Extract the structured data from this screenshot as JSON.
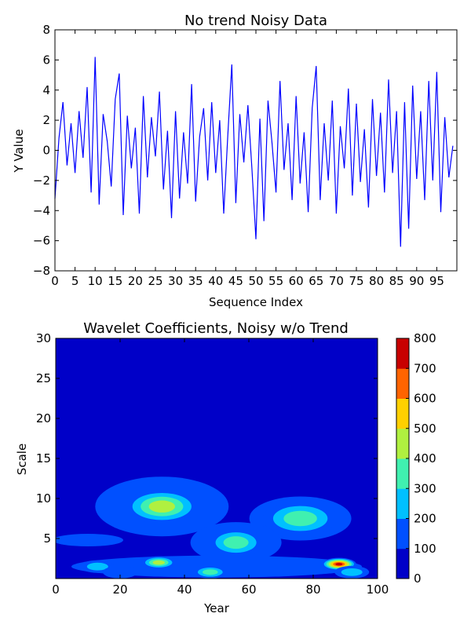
{
  "chart_data": [
    {
      "type": "line",
      "title": "No trend Noisy Data",
      "xlabel": "Sequence Index",
      "ylabel": "Y Value",
      "xlim": [
        0,
        100
      ],
      "ylim": [
        -8,
        8
      ],
      "xticks": [
        "0",
        "5",
        "10",
        "15",
        "20",
        "25",
        "30",
        "35",
        "40",
        "45",
        "50",
        "55",
        "60",
        "65",
        "70",
        "75",
        "80",
        "85",
        "90",
        "95"
      ],
      "yticks": [
        "8",
        "6",
        "4",
        "2",
        "0",
        "−2",
        "−4",
        "−6",
        "−8"
      ],
      "grid": false,
      "color": "#0000ff",
      "series": [
        {
          "x": [
            0,
            1,
            2,
            3,
            4,
            5,
            6,
            7,
            8,
            9,
            10,
            11,
            12,
            13,
            14,
            15,
            16,
            17,
            18,
            19,
            20,
            21,
            22,
            23,
            24,
            25,
            26,
            27,
            28,
            29,
            30,
            31,
            32,
            33,
            34,
            35,
            36,
            37,
            38,
            39,
            40,
            41,
            42,
            43,
            44,
            45,
            46,
            47,
            48,
            49,
            50,
            51,
            52,
            53,
            54,
            55,
            56,
            57,
            58,
            59,
            60,
            61,
            62,
            63,
            64,
            65,
            66,
            67,
            68,
            69,
            70,
            71,
            72,
            73,
            74,
            75,
            76,
            77,
            78,
            79,
            80,
            81,
            82,
            83,
            84,
            85,
            86,
            87,
            88,
            89,
            90,
            91,
            92,
            93,
            94,
            95,
            96,
            97,
            98,
            99
          ],
          "values": [
            -3.2,
            0.8,
            3.2,
            -1.0,
            1.8,
            -1.5,
            2.6,
            -0.5,
            4.2,
            -2.8,
            6.2,
            -3.6,
            2.4,
            0.6,
            -2.4,
            3.4,
            5.1,
            -4.3,
            2.3,
            -1.2,
            1.5,
            -4.2,
            3.6,
            -1.8,
            2.2,
            -0.4,
            3.9,
            -2.6,
            1.3,
            -4.5,
            2.6,
            -3.2,
            1.2,
            -2.2,
            4.4,
            -3.4,
            0.9,
            2.8,
            -2.0,
            3.2,
            -1.5,
            2.0,
            -4.2,
            1.0,
            5.7,
            -3.5,
            2.4,
            -0.8,
            3.0,
            -1.2,
            -5.9,
            2.1,
            -4.7,
            3.3,
            0.5,
            -2.8,
            4.6,
            -1.3,
            1.8,
            -3.3,
            3.6,
            -2.2,
            1.2,
            -4.1,
            2.8,
            5.6,
            -3.3,
            1.8,
            -2.0,
            3.3,
            -4.2,
            1.6,
            -1.2,
            4.1,
            -3.0,
            3.1,
            -2.1,
            1.4,
            -3.8,
            3.4,
            -1.7,
            2.5,
            -2.8,
            4.7,
            -1.5,
            2.6,
            -6.4,
            3.2,
            -5.2,
            4.3,
            -1.9,
            2.6,
            -3.3,
            4.6,
            -2.0,
            5.2,
            -4.1,
            2.2,
            -1.8,
            0.3
          ]
        }
      ]
    },
    {
      "type": "heatmap",
      "title": "Wavelet Coefficients, Noisy w/o Trend",
      "xlabel": "Year",
      "ylabel": "Scale",
      "xlim": [
        0,
        100
      ],
      "ylim": [
        0,
        30
      ],
      "xticks": [
        "0",
        "20",
        "40",
        "60",
        "80",
        "100"
      ],
      "yticks": [
        "30",
        "25",
        "20",
        "15",
        "10",
        "5"
      ],
      "colorbar": {
        "ticks": [
          "800",
          "700",
          "600",
          "500",
          "400",
          "300",
          "200",
          "100",
          "0"
        ],
        "levels": [
          0,
          100,
          200,
          300,
          400,
          500,
          600,
          700,
          800
        ],
        "colors": [
          "#0000c8",
          "#0050ff",
          "#00c0ff",
          "#40f0b0",
          "#b0f040",
          "#ffd000",
          "#ff6400",
          "#c80000"
        ]
      },
      "blobs": [
        {
          "x": 33,
          "y": 9,
          "value": 420
        },
        {
          "x": 76,
          "y": 7.5,
          "value": 330
        },
        {
          "x": 56,
          "y": 4.5,
          "value": 360
        },
        {
          "x": 32,
          "y": 2,
          "value": 470
        },
        {
          "x": 88,
          "y": 1.8,
          "value": 760
        },
        {
          "x": 48,
          "y": 0.8,
          "value": 300
        },
        {
          "x": 13,
          "y": 1.5,
          "value": 240
        },
        {
          "x": 20,
          "y": 0.8,
          "value": 180
        },
        {
          "x": 92,
          "y": 0.8,
          "value": 230
        }
      ]
    }
  ]
}
